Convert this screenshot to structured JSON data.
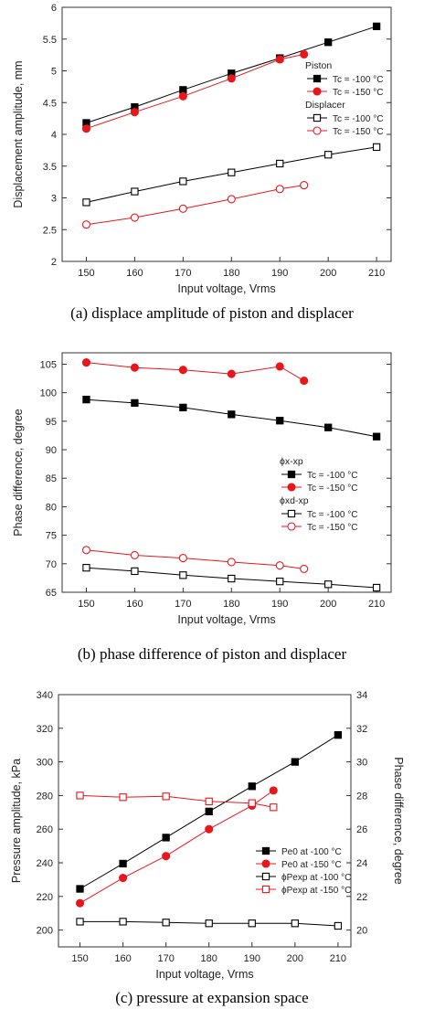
{
  "chart_data": [
    {
      "type": "line",
      "caption": "(a) displace amplitude of piston and displacer",
      "xlabel": "Input voltage, Vrms",
      "ylabel": "Displacement amplitude, mm",
      "xlim": [
        145,
        213
      ],
      "ylim": [
        2,
        6
      ],
      "xticks": [
        150,
        160,
        170,
        180,
        190,
        200,
        210
      ],
      "yticks": [
        2,
        2.5,
        3,
        3.5,
        4,
        4.5,
        5,
        5.5,
        6
      ],
      "yticklabels": [
        "2",
        "2.5",
        "3",
        "3.5",
        "4",
        "4.5",
        "5",
        "5.5",
        "6"
      ],
      "legend_position": "center-right",
      "legend_groups": [
        {
          "title": "Piston",
          "entries": [
            "Tc = -100 °C",
            "Tc = -150 °C"
          ]
        },
        {
          "title": "Displacer",
          "entries": [
            "Tc = -100 °C",
            "Tc = -150 °C"
          ]
        }
      ],
      "series": [
        {
          "color": "#000000",
          "marker": "square-filled",
          "x": [
            150,
            160,
            170,
            180,
            190,
            200,
            210
          ],
          "values": [
            4.18,
            4.43,
            4.7,
            4.96,
            5.2,
            5.45,
            5.7
          ]
        },
        {
          "color": "#e8171b",
          "marker": "circle-filled",
          "x": [
            150,
            160,
            170,
            180,
            190,
            195
          ],
          "values": [
            4.09,
            4.35,
            4.6,
            4.88,
            5.18,
            5.26
          ]
        },
        {
          "color": "#000000",
          "marker": "square-open",
          "x": [
            150,
            160,
            170,
            180,
            190,
            200,
            210
          ],
          "values": [
            2.93,
            3.1,
            3.26,
            3.4,
            3.54,
            3.68,
            3.8
          ]
        },
        {
          "color": "#e8171b",
          "marker": "circle-open",
          "x": [
            150,
            160,
            170,
            180,
            190,
            195
          ],
          "values": [
            2.58,
            2.69,
            2.83,
            2.98,
            3.14,
            3.2
          ]
        }
      ]
    },
    {
      "type": "line",
      "caption": "(b) phase difference of piston and displacer",
      "xlabel": "Input voltage, Vrms",
      "ylabel": "Phase difference, degree",
      "xlim": [
        145,
        213
      ],
      "ylim": [
        65,
        107
      ],
      "xticks": [
        150,
        160,
        170,
        180,
        190,
        200,
        210
      ],
      "yticks": [
        65,
        70,
        75,
        80,
        85,
        90,
        95,
        100,
        105
      ],
      "yticklabels": [
        "65",
        "70",
        "75",
        "80",
        "85",
        "90",
        "95",
        "100",
        "105"
      ],
      "legend_position": "center-right",
      "legend_groups": [
        {
          "title": "ϕx-xp",
          "entries": [
            "Tc = -100 °C",
            "Tc = -150 °C"
          ]
        },
        {
          "title": "ϕxd-xp",
          "entries": [
            "Tc = -100 °C",
            "Tc = -150 °C"
          ]
        }
      ],
      "series": [
        {
          "color": "#000000",
          "marker": "square-filled",
          "x": [
            150,
            160,
            170,
            180,
            190,
            200,
            210
          ],
          "values": [
            98.8,
            98.2,
            97.4,
            96.2,
            95.1,
            93.9,
            92.3
          ]
        },
        {
          "color": "#e8171b",
          "marker": "circle-filled",
          "x": [
            150,
            160,
            170,
            180,
            190,
            195
          ],
          "values": [
            105.3,
            104.4,
            104.0,
            103.3,
            104.6,
            102.1
          ]
        },
        {
          "color": "#000000",
          "marker": "square-open",
          "x": [
            150,
            160,
            170,
            180,
            190,
            200,
            210
          ],
          "values": [
            69.3,
            68.7,
            68.0,
            67.4,
            66.9,
            66.4,
            65.8
          ]
        },
        {
          "color": "#e8171b",
          "marker": "circle-open",
          "x": [
            150,
            160,
            170,
            180,
            190,
            195
          ],
          "values": [
            72.4,
            71.5,
            71.0,
            70.3,
            69.7,
            69.1
          ]
        }
      ]
    },
    {
      "type": "line",
      "caption": "(c) pressure at expansion space",
      "xlabel": "Input voltage, Vrms",
      "ylabel": "Pressure amplitude, kPa",
      "y2label": "Phase difference, degree",
      "xlim": [
        145,
        213
      ],
      "ylim": [
        190,
        340
      ],
      "y2lim": [
        19,
        34
      ],
      "xticks": [
        150,
        160,
        170,
        180,
        190,
        200,
        210
      ],
      "yticks": [
        200,
        220,
        240,
        260,
        280,
        300,
        320,
        340
      ],
      "yticklabels": [
        "200",
        "220",
        "240",
        "260",
        "280",
        "300",
        "320",
        "340"
      ],
      "y2ticks": [
        20,
        22,
        24,
        26,
        28,
        30,
        32,
        34
      ],
      "y2ticklabels": [
        "20",
        "22",
        "24",
        "26",
        "28",
        "30",
        "32",
        "34"
      ],
      "legend_position": "center-right",
      "legend_groups": [
        {
          "title": "",
          "entries": [
            "Pe0 at -100 °C",
            "Pe0 at -150 °C",
            "ϕPexp at -100 °C",
            "ϕPexp at -150 °C"
          ]
        }
      ],
      "series": [
        {
          "color": "#000000",
          "marker": "square-filled",
          "axis": "left",
          "x": [
            150,
            160,
            170,
            180,
            190,
            200,
            210
          ],
          "values": [
            224.5,
            239.5,
            255,
            270.5,
            285.5,
            300,
            316
          ]
        },
        {
          "color": "#e8171b",
          "marker": "circle-filled",
          "axis": "left",
          "x": [
            150,
            160,
            170,
            180,
            190,
            195
          ],
          "values": [
            216,
            231,
            244,
            260,
            274,
            283
          ]
        },
        {
          "color": "#000000",
          "marker": "square-open",
          "axis": "right",
          "x": [
            150,
            160,
            170,
            180,
            190,
            200,
            210
          ],
          "values": [
            20.5,
            20.5,
            20.45,
            20.4,
            20.4,
            20.4,
            20.25
          ]
        },
        {
          "color": "#e8171b",
          "marker": "square-open",
          "axis": "right",
          "x": [
            150,
            160,
            170,
            180,
            190,
            195
          ],
          "values": [
            28.0,
            27.9,
            27.95,
            27.65,
            27.55,
            27.3
          ]
        }
      ]
    }
  ]
}
